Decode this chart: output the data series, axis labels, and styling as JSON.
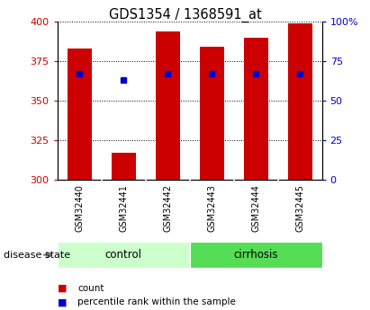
{
  "title": "GDS1354 / 1368591_at",
  "samples": [
    "GSM32440",
    "GSM32441",
    "GSM32442",
    "GSM32443",
    "GSM32444",
    "GSM32445"
  ],
  "bar_base": 300,
  "bar_tops": [
    383,
    317,
    394,
    384,
    390,
    399
  ],
  "percentile_ranks": [
    67,
    63,
    67,
    67,
    67,
    67
  ],
  "bar_color": "#cc0000",
  "dot_color": "#0000cc",
  "ylim_left": [
    300,
    400
  ],
  "ylim_right": [
    0,
    100
  ],
  "yticks_left": [
    300,
    325,
    350,
    375,
    400
  ],
  "yticks_right": [
    0,
    25,
    50,
    75,
    100
  ],
  "left_tick_color": "#cc0000",
  "right_tick_color": "#0000cc",
  "control_color": "#ccffcc",
  "cirrhosis_color": "#55dd55",
  "group_row_label": "disease state",
  "legend_count_label": "count",
  "legend_pct_label": "percentile rank within the sample",
  "bg_color": "#ffffff",
  "grid_color": "#000000",
  "bar_width": 0.55,
  "sample_bg": "#cccccc"
}
